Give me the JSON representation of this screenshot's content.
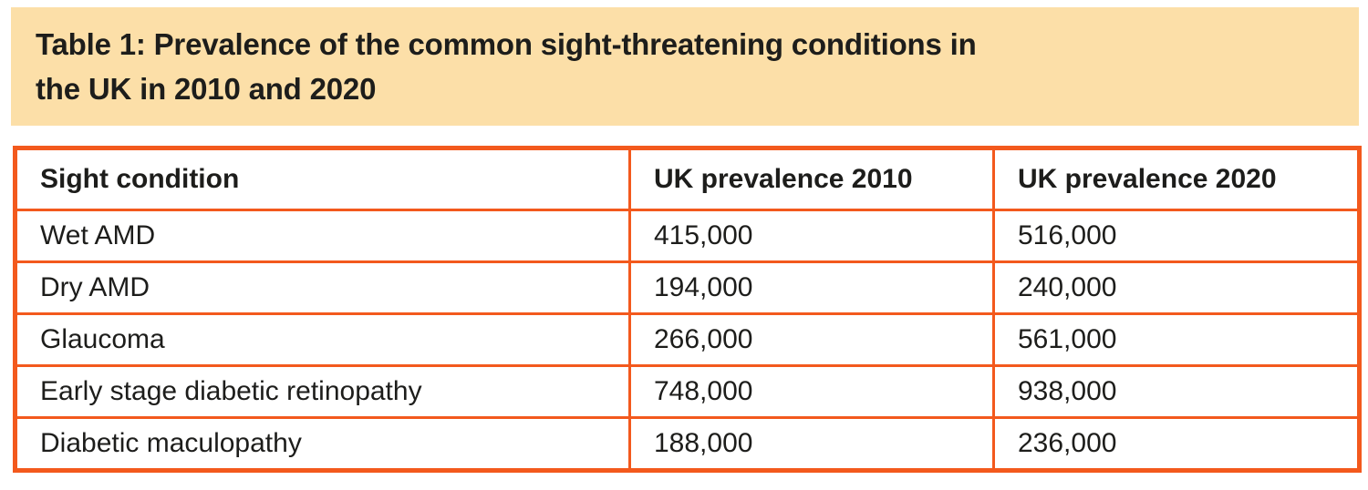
{
  "header": {
    "title_line1": "Table 1: Prevalence of the common sight-threatening conditions in",
    "title_line2": "the UK in 2010 and 2020"
  },
  "colors": {
    "accent_orange_border": "#F3591D",
    "title_band_background": "#FCDFA8",
    "text": "#1D1D1B"
  },
  "chart_data": {
    "type": "table",
    "title": "Table 1: Prevalence of the common sight-threatening conditions in the UK in 2010 and 2020",
    "columns": [
      "Sight condition",
      "UK prevalence 2010",
      "UK prevalence 2020"
    ],
    "rows": [
      [
        "Wet AMD",
        "415,000",
        "516,000"
      ],
      [
        "Dry AMD",
        "194,000",
        "240,000"
      ],
      [
        "Glaucoma",
        "266,000",
        "561,000"
      ],
      [
        "Early stage diabetic retinopathy",
        "748,000",
        "938,000"
      ],
      [
        "Diabetic maculopathy",
        "188,000",
        "236,000"
      ]
    ],
    "values_numeric": {
      "categories": [
        "Wet AMD",
        "Dry AMD",
        "Glaucoma",
        "Early stage diabetic retinopathy",
        "Diabetic maculopathy"
      ],
      "series": [
        {
          "name": "UK prevalence 2010",
          "values": [
            415000,
            194000,
            266000,
            748000,
            188000
          ]
        },
        {
          "name": "UK prevalence 2020",
          "values": [
            516000,
            240000,
            561000,
            938000,
            236000
          ]
        }
      ]
    }
  }
}
